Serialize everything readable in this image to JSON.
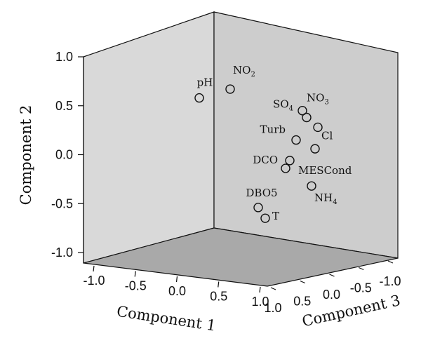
{
  "chart_data": {
    "type": "scatter",
    "title": "",
    "xlabel": "Component 1",
    "ylabel": "Component 2",
    "zlabel": "Component 3",
    "xlim": [
      -1.0,
      1.0
    ],
    "ylim": [
      -1.0,
      1.0
    ],
    "zlim": [
      -1.0,
      1.0
    ],
    "x_ticks": [
      "-1.0",
      "-0.5",
      "0.0",
      "0.5",
      "1.0"
    ],
    "y_ticks": [
      "-1.0",
      "-0.5",
      "0.0",
      "0.5",
      "1.0"
    ],
    "z_ticks": [
      "1.0",
      "0.5",
      "0.0",
      "-0.5",
      "-1.0"
    ],
    "y_values": [
      -1.0,
      -0.5,
      0.0,
      0.5,
      1.0
    ],
    "grid": false,
    "colors": {
      "back_wall": "#d9d9d9",
      "side_wall": "#cdcdcd",
      "floor": "#a9a9a9",
      "edges": "#111111",
      "marker_edge": "#111111"
    },
    "points": [
      {
        "label": "pH",
        "sub": "",
        "y": 0.58
      },
      {
        "label": "NO",
        "sub": "2",
        "y": 0.67
      },
      {
        "label": "SO",
        "sub": "4",
        "y": 0.45
      },
      {
        "label": "NO",
        "sub": "3",
        "y": 0.38
      },
      {
        "label": "Cl",
        "sub": "",
        "y": 0.28
      },
      {
        "label": "Turb",
        "sub": "",
        "y": 0.15
      },
      {
        "label": "",
        "sub": "",
        "y": 0.06
      },
      {
        "label": "DCO",
        "sub": "",
        "y": -0.06
      },
      {
        "label": "MESCond",
        "sub": "",
        "y": -0.14
      },
      {
        "label": "NH",
        "sub": "4",
        "y": -0.32
      },
      {
        "label": "DBO5",
        "sub": "",
        "y": -0.54
      },
      {
        "label": "T",
        "sub": "",
        "y": -0.65
      }
    ]
  }
}
